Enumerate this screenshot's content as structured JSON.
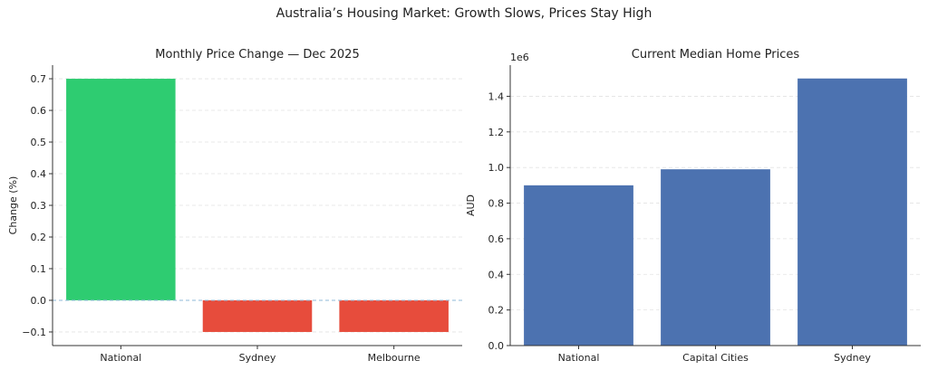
{
  "suptitle": "Australia’s Housing Market: Growth Slows, Prices Stay High",
  "chart_data": [
    {
      "type": "bar",
      "title": "Monthly Price Change — Dec 2025",
      "xlabel": "",
      "ylabel": "Change (%)",
      "categories": [
        "National",
        "Sydney",
        "Melbourne"
      ],
      "values": [
        0.7,
        -0.1,
        -0.1
      ],
      "colors": [
        "#2ecc71",
        "#e74c3c",
        "#e74c3c"
      ],
      "ylim": [
        -0.143,
        0.743
      ],
      "yticks": [
        -0.1,
        0.0,
        0.1,
        0.2,
        0.3,
        0.4,
        0.5,
        0.6,
        0.7
      ],
      "ytick_labels": [
        "−0.1",
        "0.0",
        "0.1",
        "0.2",
        "0.3",
        "0.4",
        "0.5",
        "0.6",
        "0.7"
      ],
      "grid": true,
      "zero_line_color": "#8fb8d8"
    },
    {
      "type": "bar",
      "title": "Current Median Home Prices",
      "xlabel": "",
      "ylabel": "AUD",
      "offset_label": "1e6",
      "categories": [
        "National",
        "Capital Cities",
        "Sydney"
      ],
      "values": [
        900000,
        990000,
        1500000
      ],
      "colors": [
        "#4c72b0",
        "#4c72b0",
        "#4c72b0"
      ],
      "ylim": [
        0,
        1575000
      ],
      "yticks": [
        0,
        200000,
        400000,
        600000,
        800000,
        1000000,
        1200000,
        1400000
      ],
      "ytick_labels": [
        "0.0",
        "0.2",
        "0.4",
        "0.6",
        "0.8",
        "1.0",
        "1.2",
        "1.4"
      ],
      "grid": true
    }
  ]
}
